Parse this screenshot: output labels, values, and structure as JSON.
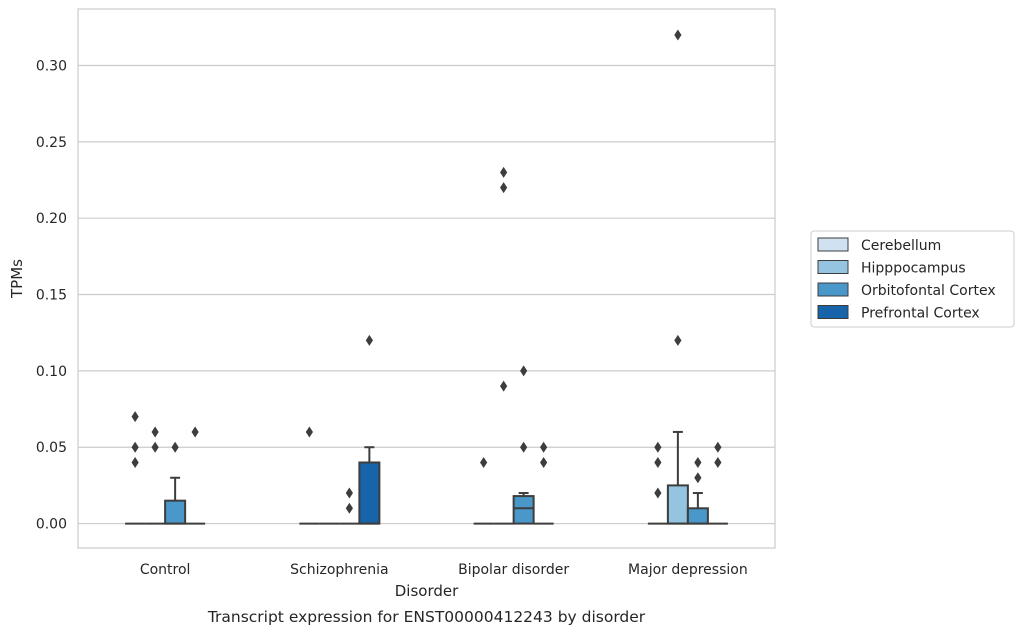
{
  "caption": "Transcript expression for ENST00000412243 by disorder",
  "chart_data": {
    "type": "box",
    "xlabel": "Disorder",
    "ylabel": "TPMs",
    "ylim": [
      -0.016,
      0.337
    ],
    "yticks": [
      0.0,
      0.05,
      0.1,
      0.15,
      0.2,
      0.25,
      0.3
    ],
    "ytick_labels": [
      "0.00",
      "0.05",
      "0.10",
      "0.15",
      "0.20",
      "0.25",
      "0.30"
    ],
    "grid": true,
    "legend_position": "right",
    "categories": [
      "Control",
      "Schizophrenia",
      "Bipolar disorder",
      "Major depression"
    ],
    "series": [
      {
        "name": "Cerebellum",
        "color": "#d0e1f2",
        "boxes": [
          {
            "q1": 0,
            "median": 0,
            "q3": 0,
            "whisker_low": 0,
            "whisker_high": 0,
            "outliers": [
              0.04,
              0.05,
              0.07
            ]
          },
          {
            "q1": 0,
            "median": 0,
            "q3": 0,
            "whisker_low": 0,
            "whisker_high": 0,
            "outliers": [
              0.06
            ]
          },
          {
            "q1": 0,
            "median": 0,
            "q3": 0,
            "whisker_low": 0,
            "whisker_high": 0,
            "outliers": [
              0.04
            ]
          },
          {
            "q1": 0,
            "median": 0,
            "q3": 0,
            "whisker_low": 0,
            "whisker_high": 0,
            "outliers": [
              0.02,
              0.04,
              0.05
            ]
          }
        ]
      },
      {
        "name": "Hipppocampus",
        "color": "#94c4df",
        "boxes": [
          {
            "q1": 0,
            "median": 0,
            "q3": 0,
            "whisker_low": 0,
            "whisker_high": 0,
            "outliers": [
              0.05,
              0.06
            ]
          },
          {
            "q1": 0,
            "median": 0,
            "q3": 0,
            "whisker_low": 0,
            "whisker_high": 0,
            "outliers": []
          },
          {
            "q1": 0,
            "median": 0,
            "q3": 0,
            "whisker_low": 0,
            "whisker_high": 0,
            "outliers": [
              0.09,
              0.22,
              0.23
            ]
          },
          {
            "q1": 0,
            "median": 0,
            "q3": 0.025,
            "whisker_low": 0,
            "whisker_high": 0.06,
            "outliers": [
              0.12,
              0.32
            ]
          }
        ]
      },
      {
        "name": "Orbitofontal Cortex",
        "color": "#4a98c9",
        "boxes": [
          {
            "q1": 0,
            "median": 0,
            "q3": 0.015,
            "whisker_low": 0,
            "whisker_high": 0.03,
            "outliers": [
              0.05
            ]
          },
          {
            "q1": 0,
            "median": 0,
            "q3": 0,
            "whisker_low": 0,
            "whisker_high": 0,
            "outliers": [
              0.01,
              0.02
            ]
          },
          {
            "q1": 0,
            "median": 0.01,
            "q3": 0.018,
            "whisker_low": 0,
            "whisker_high": 0.02,
            "outliers": [
              0.05,
              0.1
            ]
          },
          {
            "q1": 0,
            "median": 0,
            "q3": 0.01,
            "whisker_low": 0,
            "whisker_high": 0.02,
            "outliers": [
              0.03,
              0.04
            ]
          }
        ]
      },
      {
        "name": "Prefrontal Cortex",
        "color": "#1764ab",
        "boxes": [
          {
            "q1": 0,
            "median": 0,
            "q3": 0,
            "whisker_low": 0,
            "whisker_high": 0,
            "outliers": [
              0.06
            ]
          },
          {
            "q1": 0,
            "median": 0,
            "q3": 0.04,
            "whisker_low": 0,
            "whisker_high": 0.05,
            "outliers": [
              0.12
            ]
          },
          {
            "q1": 0,
            "median": 0,
            "q3": 0,
            "whisker_low": 0,
            "whisker_high": 0,
            "outliers": [
              0.04,
              0.05
            ]
          },
          {
            "q1": 0,
            "median": 0,
            "q3": 0,
            "whisker_low": 0,
            "whisker_high": 0,
            "outliers": [
              0.04,
              0.05
            ]
          }
        ]
      }
    ]
  }
}
